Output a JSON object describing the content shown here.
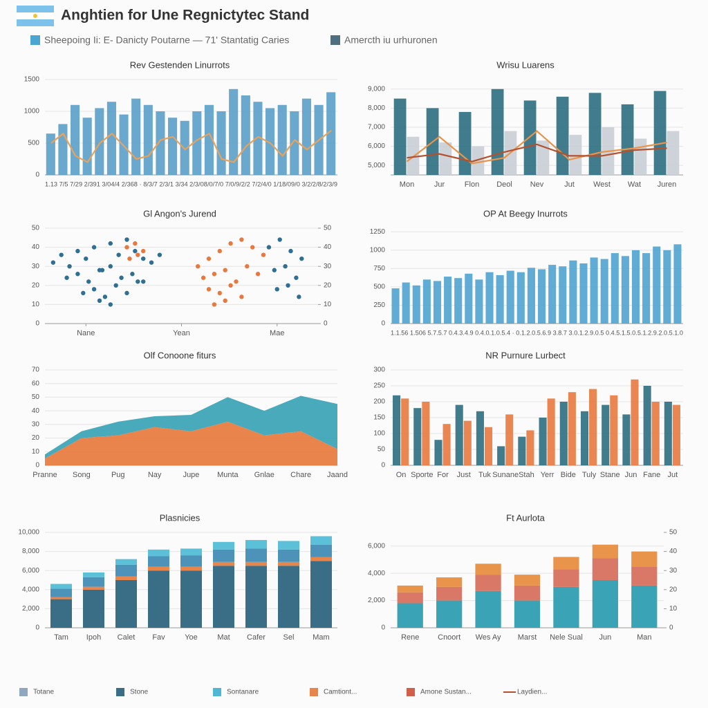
{
  "header": {
    "title": "Anghtien for Une Regnictytec Stand",
    "legend": [
      {
        "name": "Sheepoing Ii: E- Danicty Poutarne — 71' Stantatig Caries",
        "color": "#4aa6d0"
      },
      {
        "name": "Amercth iu urhuronen",
        "color": "#4f6f80"
      }
    ]
  },
  "footer_legend": [
    {
      "name": "Totane",
      "color": "#8fa8bf"
    },
    {
      "name": "Stone",
      "color": "#3a6d86"
    },
    {
      "name": "Sontanare",
      "color": "#4fb6d4"
    },
    {
      "name": "Camtiont...",
      "color": "#e8854a"
    },
    {
      "name": "Amone Sustan...",
      "color": "#d0604a"
    },
    {
      "name": "Laydien...",
      "color": "#b5502e"
    }
  ],
  "chart_data": [
    {
      "type": "bar",
      "title": "Rev Gestenden Linurrots",
      "categories": [
        null,
        null,
        null,
        null,
        null,
        null,
        null,
        null,
        null,
        null,
        null,
        null,
        null,
        null,
        null,
        null,
        null,
        null,
        null,
        null,
        null,
        null,
        null,
        null
      ],
      "x_caption": "1.13 7/5 7/29 2/391 3/04/4 2/368 · 8/3/7 2/3/1 3/34 2/3/08/0/7/0 7/0/9/2/2 7/2/4/0 1/18/09/0 3/2/2/8/2/3/9",
      "ylim": [
        0,
        1500
      ],
      "yticks": [
        0,
        500,
        1000,
        1500
      ],
      "grid": true,
      "series": [
        {
          "color": "#5b9fc9",
          "values": [
            650,
            800,
            1100,
            900,
            1050,
            1150,
            950,
            1200,
            1100,
            1000,
            900,
            850,
            1000,
            1100,
            1000,
            1350,
            1250,
            1150,
            1050,
            1100,
            1000,
            1200,
            1100,
            1300
          ]
        },
        {
          "type": "line",
          "color": "#e8a25a",
          "values": [
            500,
            650,
            300,
            200,
            500,
            650,
            450,
            250,
            300,
            550,
            600,
            400,
            550,
            650,
            250,
            200,
            450,
            600,
            500,
            300,
            550,
            400,
            550,
            700
          ]
        }
      ]
    },
    {
      "type": "bar",
      "title": "Wrisu Luarens",
      "categories": [
        "Mon",
        "Jur",
        "Flon",
        "Deol",
        "Nev",
        "Jut",
        "West",
        "Wat",
        "Juren"
      ],
      "ylim": [
        4500,
        9500
      ],
      "yticks": [
        {
          "value": 5000,
          "label": "5,000"
        },
        {
          "value": 6000,
          "label": "6,000"
        },
        {
          "value": 7000,
          "label": "7,000"
        },
        {
          "value": 8000,
          "label": "8,000"
        },
        {
          "value": 9000,
          "label": "9,000"
        }
      ],
      "grid": true,
      "series": [
        {
          "color": "#2c6e80",
          "values": [
            8500,
            8000,
            7800,
            9000,
            8400,
            8600,
            8800,
            8200,
            8900
          ]
        },
        {
          "color": "#c9ced6",
          "values": [
            6500,
            6200,
            6000,
            6800,
            6300,
            6600,
            7000,
            6400,
            6800
          ]
        },
        {
          "type": "line",
          "color": "#e8944a",
          "values": [
            5200,
            6500,
            5100,
            5400,
            6800,
            5300,
            5700,
            5900,
            6200
          ]
        },
        {
          "type": "line",
          "color": "#b5502e",
          "values": [
            5400,
            5600,
            5200,
            5700,
            6100,
            5500,
            5500,
            5800,
            5900
          ]
        }
      ]
    },
    {
      "type": "scatter",
      "title": "Gl Angon's Jurend",
      "xlim": [
        0,
        100
      ],
      "xticks": [
        {
          "value": 15,
          "label": "Nane"
        },
        {
          "value": 50,
          "label": "Yean"
        },
        {
          "value": 85,
          "label": "Mae"
        }
      ],
      "ylim": [
        0,
        50
      ],
      "yticks": [
        0,
        10,
        20,
        30,
        40,
        50
      ],
      "y2lim": [
        0,
        50
      ],
      "y2ticks": [
        0,
        10,
        20,
        30,
        40,
        50
      ],
      "grid": true,
      "series": [
        {
          "color": "#2f6f94",
          "x": [
            3,
            6,
            9,
            12,
            15,
            18,
            21,
            24,
            27,
            30,
            33,
            36,
            39,
            42,
            8,
            12,
            16,
            20,
            24,
            28,
            32,
            36,
            14,
            18,
            22,
            26,
            30,
            34,
            20,
            24,
            82,
            86,
            90,
            94,
            84,
            88,
            92,
            85,
            89,
            93
          ],
          "values": [
            32,
            36,
            30,
            38,
            34,
            40,
            28,
            42,
            36,
            44,
            38,
            34,
            32,
            36,
            24,
            26,
            22,
            28,
            30,
            24,
            26,
            22,
            16,
            18,
            14,
            20,
            16,
            22,
            12,
            10,
            40,
            44,
            38,
            34,
            28,
            30,
            24,
            18,
            20,
            14
          ]
        },
        {
          "color": "#e8793e",
          "x": [
            30,
            33,
            36,
            31,
            34,
            56,
            60,
            64,
            68,
            72,
            76,
            80,
            58,
            62,
            66,
            70,
            74,
            78,
            60,
            64,
            68,
            72,
            62,
            66
          ],
          "values": [
            40,
            42,
            38,
            34,
            36,
            30,
            34,
            38,
            42,
            44,
            40,
            36,
            24,
            26,
            28,
            22,
            30,
            26,
            18,
            16,
            20,
            14,
            10,
            12
          ]
        }
      ]
    },
    {
      "type": "bar",
      "title": "OP At Beegy Inurrots",
      "categories": [
        null,
        null,
        null,
        null,
        null,
        null,
        null,
        null,
        null,
        null,
        null,
        null,
        null,
        null,
        null,
        null,
        null,
        null,
        null,
        null,
        null,
        null,
        null,
        null,
        null,
        null,
        null,
        null
      ],
      "x_caption": "1.1.56 1.506 5.7.5.7 0.4.3.4.9 0.4.0.1.0.5.4 · 0.1.2.0.5.6.9 3.8.7 3.0.1.2.9.0.5 0.4.5.1.5.0.5.1.2.9.2.0.5.1.0",
      "ylim": [
        0,
        1300
      ],
      "yticks": [
        0,
        250,
        500,
        750,
        1000,
        1250
      ],
      "grid": true,
      "series": [
        {
          "color": "#4fa3cf",
          "values": [
            480,
            560,
            520,
            600,
            580,
            640,
            620,
            680,
            600,
            700,
            660,
            720,
            700,
            760,
            740,
            800,
            780,
            860,
            820,
            900,
            880,
            960,
            920,
            1000,
            960,
            1050,
            1000,
            1080
          ]
        }
      ]
    },
    {
      "type": "stacked_area",
      "title": "Olf Conoone fiturs",
      "categories": [
        "Pranne",
        "Song",
        "Pug",
        "Nay",
        "Jupe",
        "Munta",
        "Gnlae",
        "Chare",
        "Jaand"
      ],
      "ylim": [
        0,
        70
      ],
      "yticks": [
        0,
        10,
        20,
        30,
        40,
        50,
        60,
        70
      ],
      "grid": true,
      "series": [
        {
          "color": "#e8793e",
          "values": [
            5,
            20,
            22,
            28,
            25,
            32,
            22,
            25,
            12
          ]
        },
        {
          "color": "#3aa3b5",
          "values": [
            3,
            5,
            10,
            8,
            12,
            18,
            18,
            26,
            33
          ]
        }
      ]
    },
    {
      "type": "bar",
      "title": "NR Purnure Lurbect",
      "categories": [
        "On",
        "Sporte",
        "For",
        "Just",
        "Tuk",
        "Sunane",
        "Stah",
        "Yerr",
        "Bide",
        "Tuly",
        "Stane",
        "Jun",
        "Fane",
        "Jut"
      ],
      "ylim": [
        0,
        300
      ],
      "yticks": [
        0,
        50,
        100,
        150,
        200,
        250,
        300
      ],
      "grid": true,
      "series": [
        {
          "color": "#2c6e80",
          "values": [
            220,
            180,
            80,
            190,
            170,
            60,
            90,
            150,
            200,
            170,
            190,
            160,
            250,
            200
          ]
        },
        {
          "color": "#e8793e",
          "values": [
            210,
            200,
            130,
            140,
            120,
            160,
            110,
            210,
            230,
            240,
            220,
            270,
            200,
            190
          ]
        }
      ]
    },
    {
      "type": "stacked_bar",
      "title": "Plasnicies",
      "categories": [
        "Tam",
        "Ipoh",
        "Calet",
        "Fav",
        "Yoe",
        "Mat",
        "Cafer",
        "Sel",
        "Mam"
      ],
      "ylim": [
        0,
        10000
      ],
      "yticks": [
        0,
        {
          "value": 2000,
          "label": "2,000"
        },
        {
          "value": 4000,
          "label": "4,000"
        },
        {
          "value": 6000,
          "label": "6,000"
        },
        {
          "value": 8000,
          "label": "8,000"
        },
        {
          "value": 10000,
          "label": "10,000"
        }
      ],
      "grid": true,
      "series": [
        {
          "color": "#3a6d86",
          "values": [
            3000,
            4000,
            5000,
            6000,
            6000,
            6500,
            6500,
            6500,
            7000
          ]
        },
        {
          "color": "#e8854a",
          "values": [
            200,
            300,
            400,
            400,
            400,
            400,
            400,
            400,
            400
          ]
        },
        {
          "color": "#4d93b9",
          "values": [
            900,
            1000,
            1200,
            1100,
            1200,
            1300,
            1400,
            1300,
            1300
          ]
        },
        {
          "color": "#5cc0d9",
          "values": [
            500,
            500,
            600,
            700,
            700,
            800,
            900,
            900,
            900
          ]
        }
      ]
    },
    {
      "type": "stacked_bar",
      "title": "Ft Aurlota",
      "categories": [
        "Rene",
        "Cnoort",
        "Wes Ay",
        "Marst",
        "Nele Sual",
        "Jun",
        "Man"
      ],
      "ylim": [
        0,
        7000
      ],
      "yticks": [
        0,
        {
          "value": 2000,
          "label": "2,000"
        },
        {
          "value": 4000,
          "label": "4,000"
        },
        {
          "value": 6000,
          "label": "6,000"
        }
      ],
      "y2lim": [
        0,
        50
      ],
      "y2ticks": [
        0,
        10,
        20,
        30,
        40,
        50
      ],
      "grid": true,
      "series": [
        {
          "color": "#3aa3b5",
          "values": [
            1800,
            2000,
            2700,
            2000,
            3000,
            3500,
            3100
          ]
        },
        {
          "color": "#d97866",
          "values": [
            800,
            1000,
            1200,
            1100,
            1300,
            1600,
            1400
          ]
        },
        {
          "color": "#e8944a",
          "values": [
            500,
            700,
            800,
            800,
            900,
            1000,
            1100
          ]
        }
      ]
    }
  ]
}
